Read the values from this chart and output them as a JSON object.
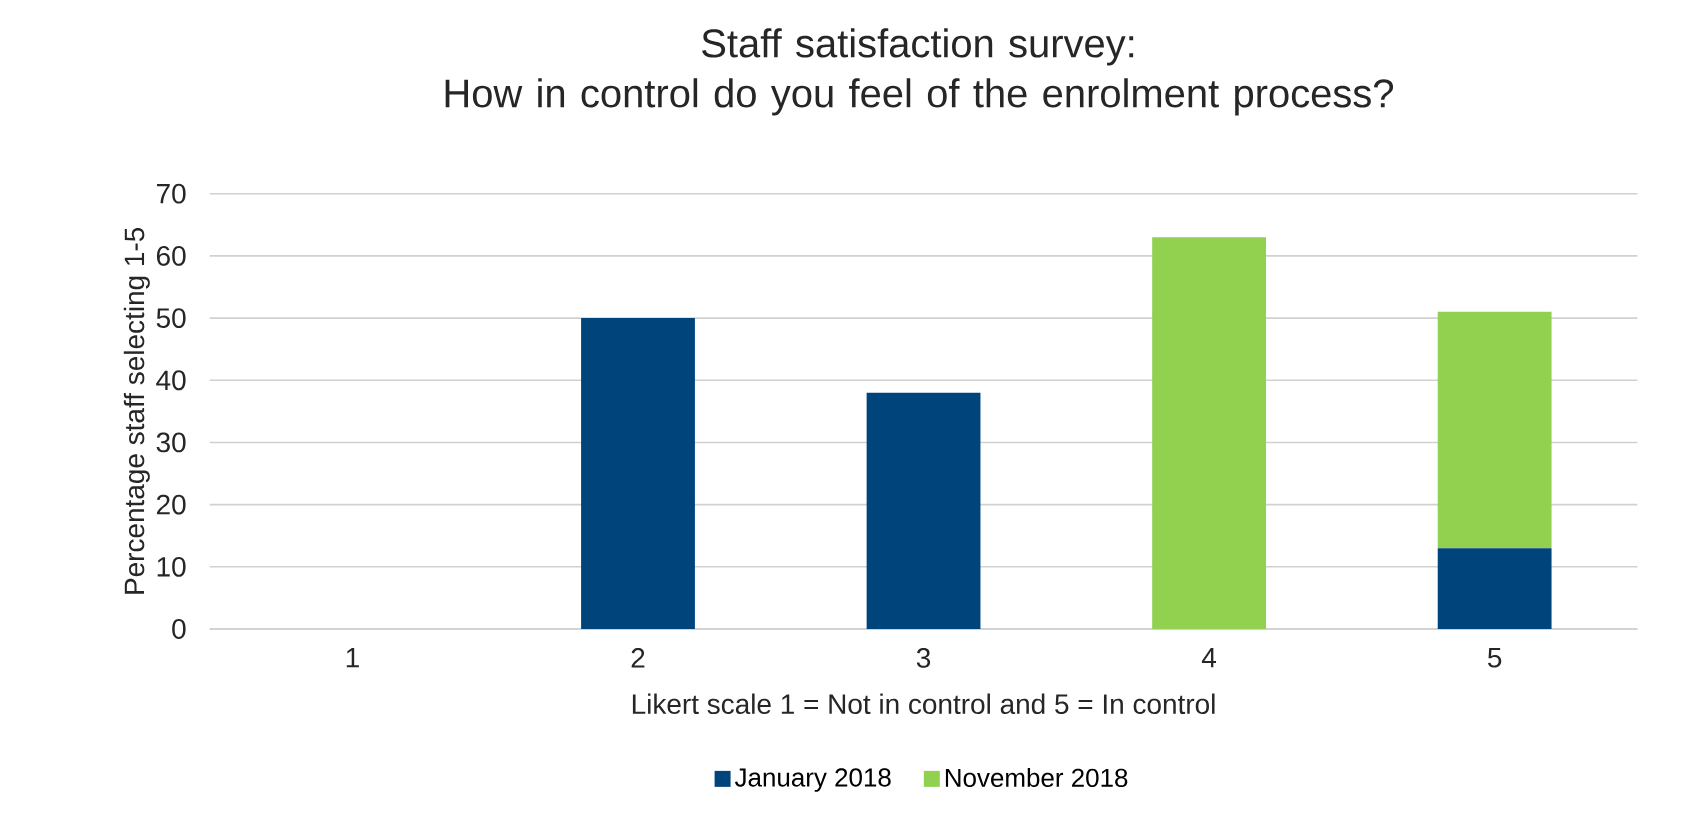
{
  "chart_data": {
    "type": "bar",
    "stacked": true,
    "title": "Staff satisfaction survey:\nHow in control do you feel of the enrolment process?",
    "xlabel": "Likert scale 1 = Not in control and 5 = In control",
    "ylabel": "Percentage staff selecting 1-5",
    "categories": [
      "1",
      "2",
      "3",
      "4",
      "5"
    ],
    "series": [
      {
        "name": "January 2018",
        "color": "#00447c",
        "values": [
          0,
          50,
          38,
          0,
          13
        ]
      },
      {
        "name": "November 2018",
        "color": "#92d050",
        "values": [
          0,
          0,
          0,
          63,
          38
        ]
      }
    ],
    "ylim": [
      0,
      70
    ],
    "yticks": [
      0,
      10,
      20,
      30,
      40,
      50,
      60,
      70
    ],
    "grid": "y",
    "legend": "bottom"
  }
}
